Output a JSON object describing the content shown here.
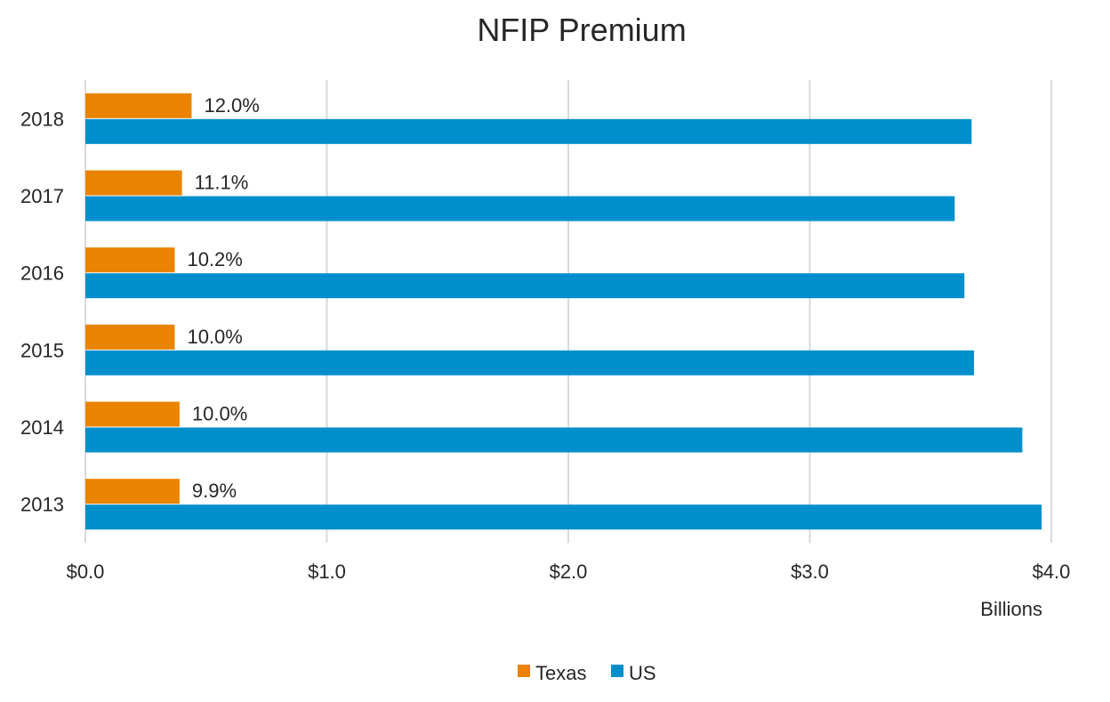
{
  "chart_data": {
    "type": "bar",
    "orientation": "horizontal",
    "title": "NFIP Premium",
    "categories": [
      "2018",
      "2017",
      "2016",
      "2015",
      "2014",
      "2013"
    ],
    "series": [
      {
        "name": "Texas",
        "color": "#E98300",
        "values": [
          0.44,
          0.4,
          0.37,
          0.37,
          0.39,
          0.39
        ],
        "data_labels": [
          "12.0%",
          "11.1%",
          "10.2%",
          "10.0%",
          "10.0%",
          "9.9%"
        ]
      },
      {
        "name": "US",
        "color": "#008FCC",
        "values": [
          3.67,
          3.6,
          3.64,
          3.68,
          3.88,
          3.96
        ]
      }
    ],
    "x_ticks": [
      0,
      1,
      2,
      3,
      4
    ],
    "x_tick_labels": [
      "$0.0",
      "$1.0",
      "$2.0",
      "$3.0",
      "$4.0"
    ],
    "xlim": [
      0,
      4
    ],
    "x_unit_label": "Billions",
    "grid": true,
    "legend_position": "bottom"
  }
}
